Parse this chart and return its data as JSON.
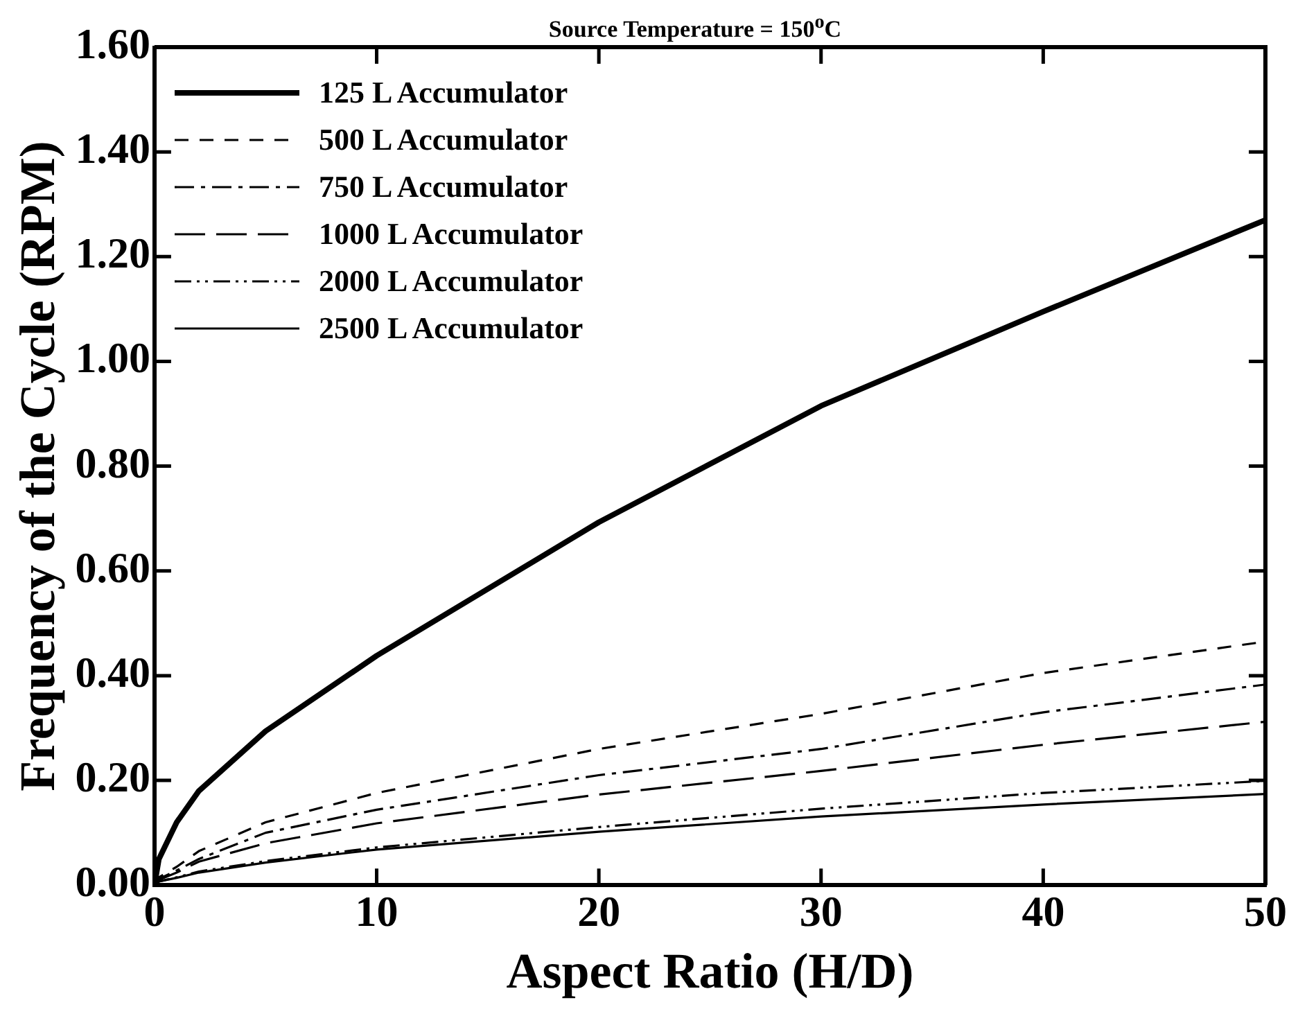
{
  "chart_data": {
    "type": "line",
    "title": "Source Temperature = 150$^{o}$C",
    "xlabel": "Aspect Ratio (H/D)",
    "ylabel": "Frequency of the Cycle (RPM)",
    "x": [
      0,
      0.2,
      1,
      2,
      5,
      10,
      20,
      30,
      40,
      50
    ],
    "series": [
      {
        "name": "125 L Accumulator",
        "color": "#000000",
        "line_style": "solid",
        "values": [
          0,
          0.05,
          0.12,
          0.18,
          0.294,
          0.438,
          0.693,
          0.915,
          1.095,
          1.27
        ]
      },
      {
        "name": "500 L Accumulator",
        "color": "#000000",
        "line_style": "dashed",
        "values": [
          0,
          0.015,
          0.035,
          0.065,
          0.12,
          0.176,
          0.26,
          0.327,
          0.405,
          0.465
        ]
      },
      {
        "name": "750 L Accumulator",
        "color": "#000000",
        "line_style": "dashed",
        "values": [
          0,
          0.012,
          0.028,
          0.05,
          0.1,
          0.144,
          0.21,
          0.26,
          0.33,
          0.383
        ]
      },
      {
        "name": "1000 L Accumulator",
        "color": "#000000",
        "line_style": "dashed",
        "values": [
          0,
          0.01,
          0.024,
          0.045,
          0.08,
          0.118,
          0.173,
          0.218,
          0.268,
          0.312
        ]
      },
      {
        "name": "2000 L Accumulator",
        "color": "#000000",
        "line_style": "dashed",
        "values": [
          0,
          0.007,
          0.015,
          0.026,
          0.046,
          0.072,
          0.111,
          0.146,
          0.176,
          0.199
        ]
      },
      {
        "name": "2500 L Accumulator",
        "color": "#000000",
        "line_style": "solid",
        "values": [
          0,
          0.007,
          0.014,
          0.024,
          0.043,
          0.068,
          0.102,
          0.131,
          0.154,
          0.174
        ]
      }
    ],
    "xlim": [
      0,
      50
    ],
    "xticks": [
      0,
      10,
      20,
      30,
      40,
      50
    ],
    "ylim": [
      0,
      1.6
    ],
    "yticks": [
      {
        "value": 0,
        "label": "0.00"
      },
      {
        "value": 0.2,
        "label": "0.20"
      },
      {
        "value": 0.4,
        "label": "0.40"
      },
      {
        "value": 0.6,
        "label": "0.60"
      },
      {
        "value": 0.8,
        "label": "0.80"
      },
      {
        "value": 1.0,
        "label": "1.00"
      },
      {
        "value": 1.2,
        "label": "1.20"
      },
      {
        "value": 1.4,
        "label": "1.40"
      },
      {
        "value": 1.6,
        "label": "1.60"
      }
    ],
    "grid": false,
    "legend": "top left",
    "marker": "none"
  }
}
